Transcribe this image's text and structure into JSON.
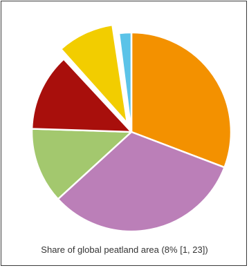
{
  "chart_data": {
    "type": "pie",
    "title": "Share of global peatland area (8% [1, 23])",
    "start_angle_deg": 0,
    "direction": "clockwise",
    "exploded_index": 5,
    "slices": [
      {
        "value": 30.8,
        "color": "#f39100"
      },
      {
        "value": 32.4,
        "color": "#bb7fb8"
      },
      {
        "value": 12.3,
        "color": "#a3c86e"
      },
      {
        "value": 12.6,
        "color": "#a80f0c"
      },
      {
        "value": 0.3,
        "color": "#ffffff"
      },
      {
        "value": 9.2,
        "color": "#f2cd00"
      },
      {
        "value": 0.4,
        "color": "#ffffff"
      },
      {
        "value": 2.0,
        "color": "#5bc3e8"
      }
    ]
  }
}
